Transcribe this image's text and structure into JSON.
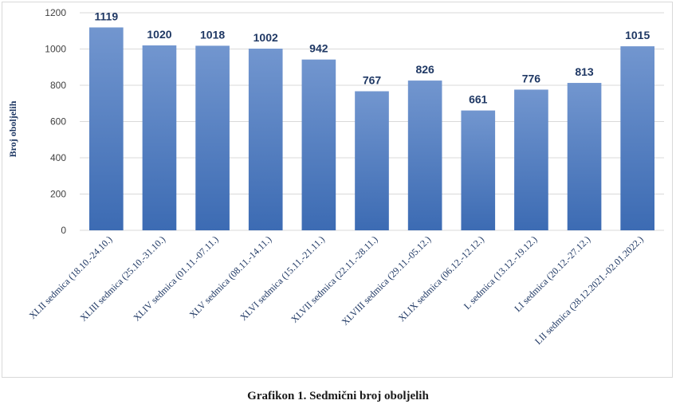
{
  "caption": "Grafikon 1. Sedmični broj oboljelih",
  "chart_data": {
    "type": "bar",
    "ylabel": "Broj oboljelih",
    "xlabel": "",
    "ylim": [
      0,
      1200
    ],
    "yticks": [
      0,
      200,
      400,
      600,
      800,
      1000,
      1200
    ],
    "grid": true,
    "colors": {
      "bar_top": "#7296cf",
      "bar_bottom": "#3c6bb3",
      "label": "#1f3864"
    },
    "categories": [
      "XLII sedmica (18.10.-24.10.)",
      "XLIII sedmica (25.10.-31.10.)",
      "XLIV sedmica (01.11.-07.11.)",
      "XLV sedmica (08.11.-14.11.)",
      "XLVI sedmica (15.11.-21.11.)",
      "XLVII sedmica (22.11.-28.11.)",
      "XLVIII sedmica (29.11.-05.12.)",
      "XLIX sedmica (06.12.-12.12.)",
      "L sedmica (13.12.-19.12.)",
      "LI sedmica (20.12.-27.12.)",
      "LII sedmica (28.12.2021.-02.01.2022.)"
    ],
    "values": [
      1119,
      1020,
      1018,
      1002,
      942,
      767,
      826,
      661,
      776,
      813,
      1015
    ]
  }
}
